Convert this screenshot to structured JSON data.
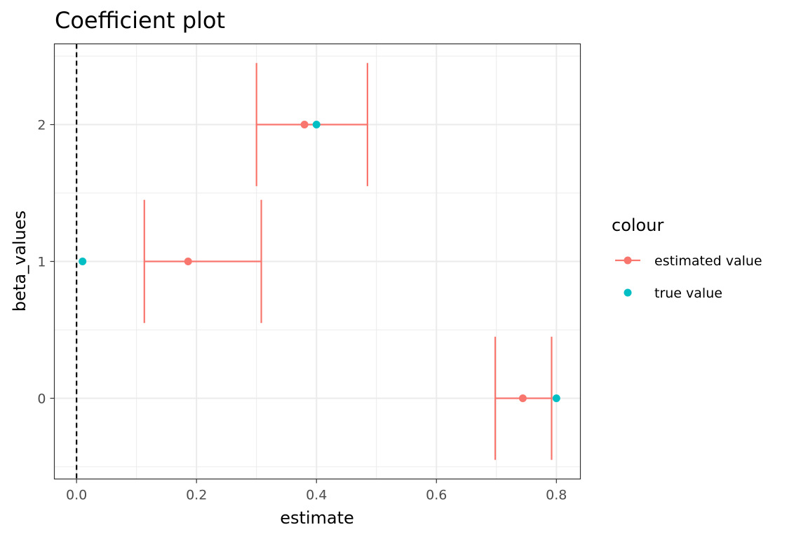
{
  "chart_data": {
    "type": "scatter",
    "title": "Coefficient plot",
    "xlabel": "estimate",
    "ylabel": "beta_values",
    "xlim": [
      -0.037,
      0.84
    ],
    "ylim": [
      -0.59,
      2.59
    ],
    "x_ticks": [
      0.0,
      0.2,
      0.4,
      0.6,
      0.8
    ],
    "x_tick_labels": [
      "0.0",
      "0.2",
      "0.4",
      "0.6",
      "0.8"
    ],
    "y_ticks": [
      0,
      1,
      2
    ],
    "y_tick_labels": [
      "0",
      "1",
      "2"
    ],
    "grid": true,
    "reference_line": {
      "x": 0,
      "style": "dashed",
      "color": "#000000"
    },
    "legend": {
      "title": "colour",
      "position": "right",
      "entries": [
        {
          "label": "estimated value",
          "color": "#F8766D",
          "shape": "point-line"
        },
        {
          "label": "true value",
          "color": "#00BFC4",
          "shape": "point"
        }
      ]
    },
    "series": [
      {
        "name": "estimated value",
        "color": "#F8766D",
        "points": [
          {
            "y": 2,
            "x": 0.38,
            "xmin": 0.3,
            "xmax": 0.485
          },
          {
            "y": 1,
            "x": 0.186,
            "xmin": 0.113,
            "xmax": 0.308
          },
          {
            "y": 0,
            "x": 0.744,
            "xmin": 0.698,
            "xmax": 0.792
          }
        ]
      },
      {
        "name": "true value",
        "color": "#00BFC4",
        "points": [
          {
            "y": 2,
            "x": 0.4
          },
          {
            "y": 1,
            "x": 0.01
          },
          {
            "y": 0,
            "x": 0.8
          }
        ]
      }
    ]
  }
}
